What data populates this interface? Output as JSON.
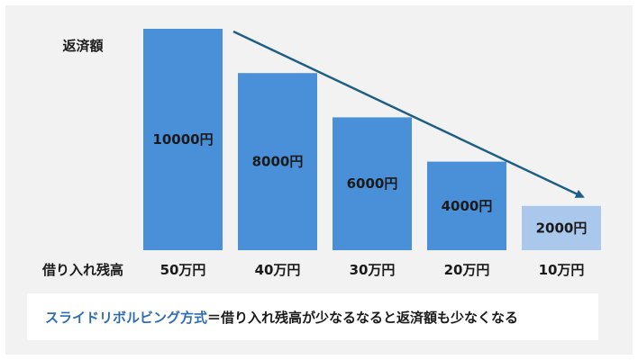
{
  "chart_data": {
    "type": "bar",
    "y_title": "返済額",
    "x_title": "借り入れ残高",
    "categories": [
      "50万円",
      "40万円",
      "30万円",
      "20万円",
      "10万円"
    ],
    "values": [
      10000,
      8000,
      6000,
      4000,
      2000
    ],
    "value_labels": [
      "10000円",
      "8000円",
      "6000円",
      "4000円",
      "2000円"
    ],
    "bar_colors": [
      "#4a90d9",
      "#4a90d9",
      "#4a90d9",
      "#4a90d9",
      "#a9c8ec"
    ],
    "arrow_color": "#1f5f86",
    "ylim": [
      0,
      10000
    ],
    "grid": false,
    "legend": "none"
  },
  "caption": {
    "term": "スライドリボルビング方式",
    "text": "＝借り入れ残高が少なるなると返済額も少なくなる"
  },
  "colors": {
    "panel_bg": "#f2f2f2",
    "caption_term": "#2e6db4"
  }
}
